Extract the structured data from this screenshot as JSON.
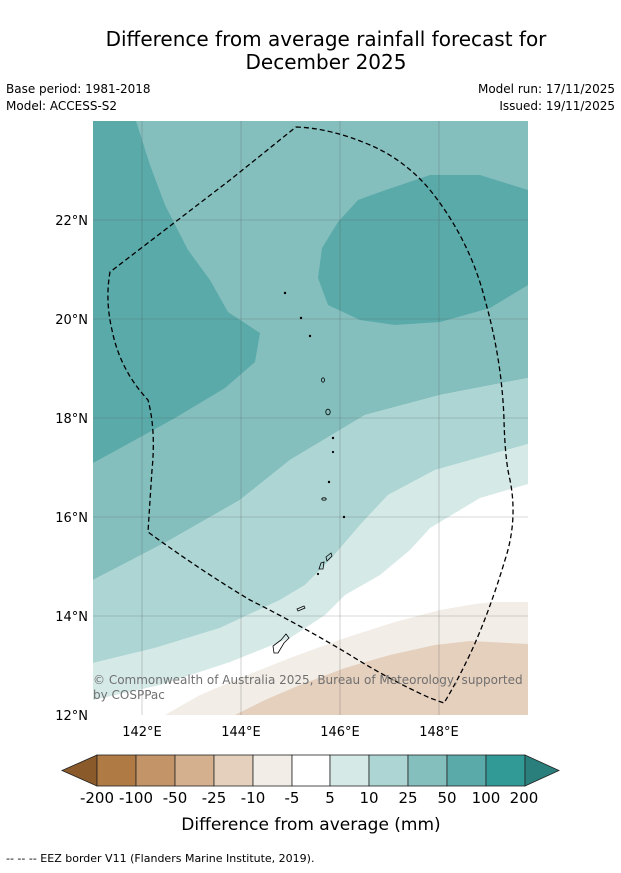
{
  "title_line1": "Difference from average rainfall forecast for",
  "title_line2": "December 2025",
  "meta": {
    "base_period": "Base period: 1981-2018",
    "model": "Model: ACCESS-S2",
    "model_run": "Model run: 17/11/2025",
    "issued": "Issued: 19/11/2025"
  },
  "map": {
    "lat_ticks": [
      "22°N",
      "20°N",
      "18°N",
      "16°N",
      "14°N",
      "12°N"
    ],
    "lon_ticks": [
      "142°E",
      "144°E",
      "146°E",
      "148°E"
    ],
    "copyright_line1": "© Commonwealth of Australia 2025, Bureau of Meteorology, supported",
    "copyright_line2": "by COSPPac"
  },
  "colorbar": {
    "label": "Difference from average (mm)",
    "ticks": [
      "-200",
      "-100",
      "-50",
      "-25",
      "-10",
      "-5",
      "5",
      "10",
      "25",
      "50",
      "100",
      "200"
    ],
    "colors": {
      "lt_-200": "#8a5a2b",
      "-200_-100": "#b07a44",
      "-100_-50": "#c39468",
      "-50_-25": "#d4b08e",
      "-25_-10": "#e5cfbd",
      "-10_-5": "#f2ede6",
      "-5_5": "#ffffff",
      "5_10": "#d5e9e7",
      "10_25": "#acd5d3",
      "25_50": "#84bfbe",
      "50_100": "#5aaaa9",
      "100_200": "#319a97",
      "gt_200": "#2a7f7c"
    }
  },
  "footnote": "--  --  -- EEZ border V11 (Flanders Marine Institute, 2019)."
}
